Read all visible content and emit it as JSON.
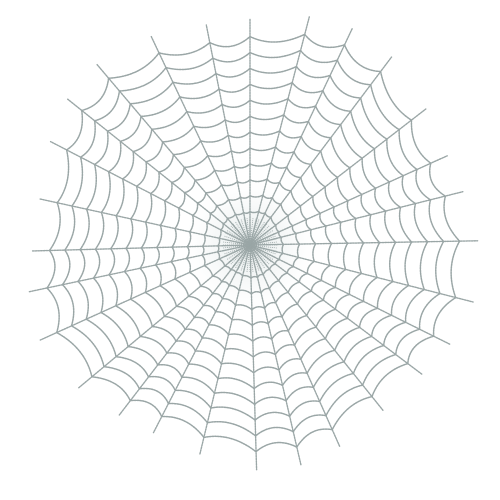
{
  "image": {
    "subject": "spider-web-illustration",
    "background_color": "#ffffff",
    "thread_color": "#9aa6a6",
    "glow_color": "#e8eeee",
    "radial_thread_count": 28,
    "spiral_ring_count": 12
  }
}
